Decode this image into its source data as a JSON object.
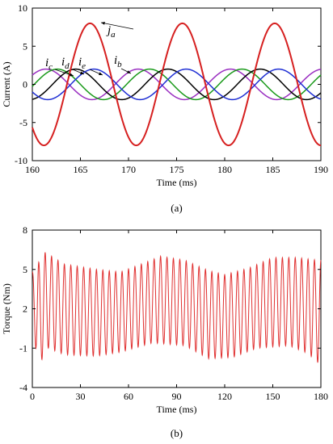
{
  "chart_data": [
    {
      "type": "line",
      "panel_label": "(a)",
      "xlabel": "Time (ms)",
      "ylabel": "Current (A)",
      "xlim": [
        160,
        190
      ],
      "ylim": [
        -10,
        10
      ],
      "xticks": [
        160,
        165,
        170,
        175,
        180,
        185,
        190
      ],
      "yticks": [
        -10,
        -5,
        0,
        5,
        10
      ],
      "grid": false,
      "period_ms": 9.6,
      "series": [
        {
          "name": "ja",
          "color": "#d62020",
          "amplitude": 8,
          "peak_time_ms": 166.0
        },
        {
          "name": "ib",
          "color": "#9a2fc1",
          "amplitude": 2,
          "peak_time_ms": 171.0
        },
        {
          "name": "ic",
          "color": "#1a9a1a",
          "amplitude": 2,
          "peak_time_ms": 162.6
        },
        {
          "name": "id",
          "color": "#000000",
          "amplitude": 2,
          "peak_time_ms": 164.5
        },
        {
          "name": "ie",
          "color": "#1f2fd4",
          "amplitude": 2,
          "peak_time_ms": 166.4
        }
      ],
      "annotations": [
        {
          "symbol": "j",
          "sub": "a",
          "series": "ja"
        },
        {
          "symbol": "i",
          "sub": "c",
          "series": "ic"
        },
        {
          "symbol": "i",
          "sub": "d",
          "series": "id"
        },
        {
          "symbol": "i",
          "sub": "e",
          "series": "ie"
        },
        {
          "symbol": "i",
          "sub": "b",
          "series": "ib"
        }
      ]
    },
    {
      "type": "line",
      "panel_label": "(b)",
      "xlabel": "Time (ms)",
      "ylabel": "Torque (Nm)",
      "xlim": [
        0,
        180
      ],
      "ylim": [
        -4,
        8
      ],
      "xticks": [
        0,
        30,
        60,
        90,
        120,
        150,
        180
      ],
      "yticks": [
        -4,
        -1,
        2,
        5,
        8
      ],
      "grid": false,
      "series": [
        {
          "name": "Torque",
          "color": "#e03030",
          "ripple_period_ms": 4.0,
          "upper_envelope": [
            [
              0,
              4.8
            ],
            [
              8,
              6.3
            ],
            [
              20,
              5.4
            ],
            [
              40,
              5.0
            ],
            [
              55,
              4.8
            ],
            [
              70,
              5.5
            ],
            [
              80,
              6.0
            ],
            [
              95,
              5.7
            ],
            [
              110,
              4.9
            ],
            [
              120,
              4.6
            ],
            [
              135,
              5.1
            ],
            [
              150,
              5.9
            ],
            [
              165,
              5.9
            ],
            [
              178,
              5.7
            ]
          ],
          "lower_envelope": [
            [
              0,
              2.5
            ],
            [
              3,
              -2.5
            ],
            [
              10,
              -1.0
            ],
            [
              20,
              -1.5
            ],
            [
              40,
              -1.6
            ],
            [
              55,
              -1.3
            ],
            [
              75,
              -0.6
            ],
            [
              95,
              -0.8
            ],
            [
              110,
              -1.8
            ],
            [
              125,
              -1.7
            ],
            [
              140,
              -1.0
            ],
            [
              160,
              -0.8
            ],
            [
              172,
              -1.4
            ],
            [
              178,
              -2.1
            ]
          ]
        }
      ]
    }
  ]
}
